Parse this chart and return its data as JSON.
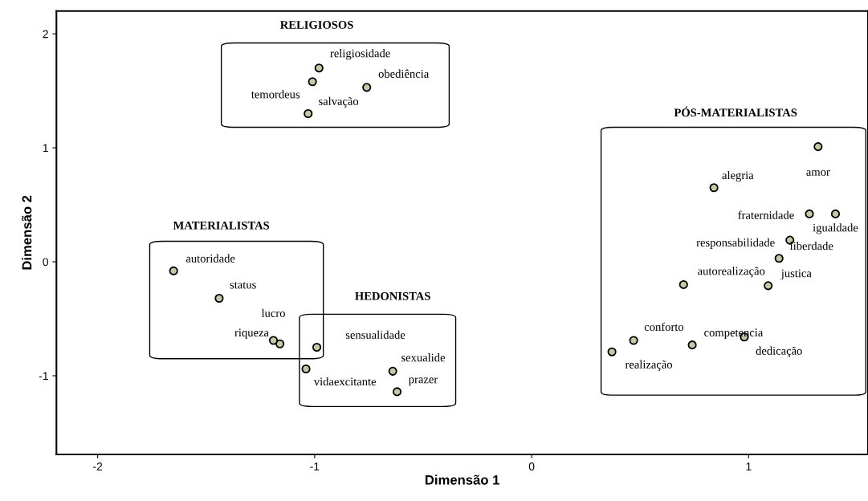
{
  "chart_data": {
    "type": "scatter",
    "xlabel": "Dimensão 1",
    "ylabel": "Dimensão 2",
    "xlim": [
      -2.19,
      1.55
    ],
    "ylim": [
      -1.69,
      2.2
    ],
    "xticks": [
      -2,
      -1,
      0,
      1
    ],
    "yticks": [
      -1,
      0,
      1,
      2
    ],
    "grid": false,
    "legend": false,
    "marker": "circle",
    "series": [
      {
        "color": "#c8c8a4",
        "x": [
          -0.98,
          -0.76,
          -1.01,
          -1.03,
          -1.65,
          -1.44,
          -1.16,
          -1.19,
          -0.99,
          -0.64,
          -0.62,
          -1.04,
          1.32,
          0.84,
          1.28,
          1.4,
          1.19,
          1.14,
          0.7,
          1.09,
          0.47,
          0.74,
          0.98,
          0.37
        ],
        "values": [
          1.7,
          1.53,
          1.58,
          1.3,
          -0.08,
          -0.32,
          -0.72,
          -0.69,
          -0.75,
          -0.96,
          -1.14,
          -0.94,
          1.01,
          0.65,
          0.42,
          0.42,
          0.19,
          0.03,
          -0.2,
          -0.21,
          -0.69,
          -0.73,
          -0.66,
          -0.79
        ]
      }
    ],
    "annotations": [
      {
        "text": "religiosidade",
        "x": -0.98,
        "y": 1.7
      },
      {
        "text": "obediência",
        "x": -0.76,
        "y": 1.53
      },
      {
        "text": "temordeus",
        "x": -1.01,
        "y": 1.58
      },
      {
        "text": "salvação",
        "x": -1.03,
        "y": 1.3
      },
      {
        "text": "autoridade",
        "x": -1.65,
        "y": -0.08
      },
      {
        "text": "status",
        "x": -1.44,
        "y": -0.32
      },
      {
        "text": "lucro",
        "x": -1.16,
        "y": -0.72
      },
      {
        "text": "riqueza",
        "x": -1.19,
        "y": -0.69
      },
      {
        "text": "sensualidade",
        "x": -0.99,
        "y": -0.75
      },
      {
        "text": "sexualide",
        "x": -0.64,
        "y": -0.96
      },
      {
        "text": "prazer",
        "x": -0.62,
        "y": -1.14
      },
      {
        "text": "vidaexcitante",
        "x": -1.04,
        "y": -0.94
      },
      {
        "text": "amor",
        "x": 1.32,
        "y": 1.01
      },
      {
        "text": "alegria",
        "x": 0.84,
        "y": 0.65
      },
      {
        "text": "fraternidade",
        "x": 1.28,
        "y": 0.42
      },
      {
        "text": "igualdade",
        "x": 1.4,
        "y": 0.42
      },
      {
        "text": "responsabilidade",
        "x": 1.19,
        "y": 0.19
      },
      {
        "text": "liberdade",
        "x": 1.14,
        "y": 0.03
      },
      {
        "text": "autorealização",
        "x": 0.7,
        "y": -0.2
      },
      {
        "text": "justica",
        "x": 1.09,
        "y": -0.21
      },
      {
        "text": "conforto",
        "x": 0.47,
        "y": -0.69
      },
      {
        "text": "competencia",
        "x": 0.74,
        "y": -0.73
      },
      {
        "text": "dedicação",
        "x": 0.98,
        "y": -0.66
      },
      {
        "text": "realização",
        "x": 0.37,
        "y": -0.79
      },
      "RELIGIOSOS",
      "MATERIALISTAS",
      "HEDONISTAS",
      "PÓS-MATERIALISTAS"
    ]
  }
}
